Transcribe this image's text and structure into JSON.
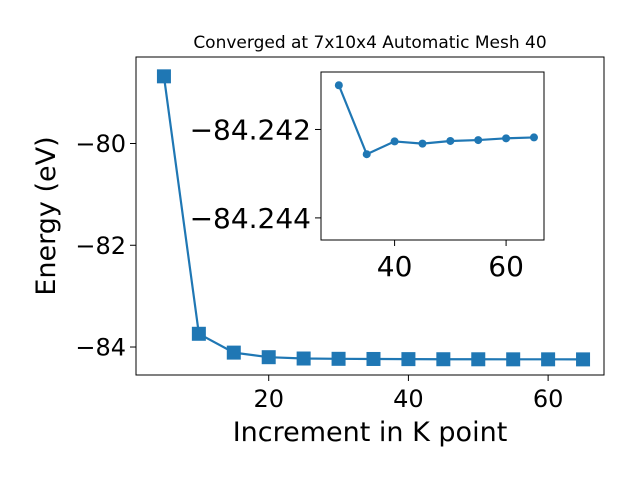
{
  "chart_data": [
    {
      "type": "line",
      "title": "Converged at 7x10x4 Automatic Mesh 40",
      "xlabel": "Increment in K point",
      "ylabel": "Energy (eV)",
      "xlim": [
        1.0,
        68.0
      ],
      "ylim": [
        -84.55,
        -78.3
      ],
      "xticks": [
        20,
        40,
        60
      ],
      "xtick_labels": [
        "20",
        "40",
        "60"
      ],
      "yticks": [
        -80,
        -82,
        -84
      ],
      "ytick_labels": [
        "−80",
        "−82",
        "−84"
      ],
      "grid": false,
      "color": "#1f77b4",
      "marker": "square",
      "series": [
        {
          "x": [
            5,
            10,
            15,
            20,
            25,
            30,
            35,
            40,
            45,
            50,
            55,
            60,
            65
          ],
          "y": [
            -78.68,
            -83.74,
            -84.11,
            -84.2,
            -84.226,
            -84.232,
            -84.235,
            -84.238,
            -84.24,
            -84.241,
            -84.242,
            -84.242,
            -84.243
          ]
        }
      ]
    },
    {
      "type": "line",
      "title": "",
      "xlabel": "",
      "ylabel": "",
      "xlim": [
        26.8,
        66.8
      ],
      "ylim": [
        -84.2445,
        -84.2407
      ],
      "xticks": [
        40,
        60
      ],
      "xtick_labels": [
        "40",
        "60"
      ],
      "yticks": [
        -84.244,
        -84.242
      ],
      "ytick_labels": [
        "−84.244",
        "−84.242"
      ],
      "grid": false,
      "color": "#1f77b4",
      "marker": "circle",
      "series": [
        {
          "x": [
            30,
            35,
            40,
            45,
            50,
            55,
            60,
            65
          ],
          "y": [
            -84.241,
            -84.24256,
            -84.24227,
            -84.24232,
            -84.24226,
            -84.24224,
            -84.2422,
            -84.24218
          ]
        }
      ]
    }
  ]
}
